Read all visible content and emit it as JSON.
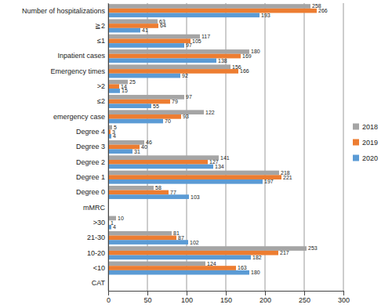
{
  "chart_data": {
    "type": "bar",
    "orientation": "horizontal",
    "categories": [
      "CAT",
      "<10",
      "10-20",
      "21-30",
      ">30",
      "mMRC",
      "Degree 0",
      "Degree 1",
      "Degree 2",
      "Degree 3",
      "Degree 4",
      "emergency case",
      "≤2",
      ">2",
      "Emergency times",
      "Inpatient cases",
      "≤1",
      "≧2",
      "Number of hospitalizations"
    ],
    "series": [
      {
        "name": "2018",
        "color": "#a5a5a5",
        "values": [
          null,
          124,
          253,
          81,
          10,
          null,
          58,
          218,
          141,
          46,
          5,
          122,
          97,
          25,
          156,
          180,
          117,
          63,
          258
        ]
      },
      {
        "name": "2019",
        "color": "#ed7d31",
        "values": [
          null,
          163,
          217,
          87,
          1,
          null,
          77,
          221,
          127,
          40,
          3,
          93,
          79,
          14,
          166,
          169,
          105,
          64,
          266
        ]
      },
      {
        "name": "2020",
        "color": "#5b9bd5",
        "values": [
          null,
          180,
          182,
          102,
          4,
          null,
          103,
          197,
          134,
          31,
          4,
          70,
          55,
          15,
          92,
          138,
          97,
          41,
          193
        ]
      }
    ],
    "xlim": [
      0,
      300
    ],
    "xticks": [
      0,
      50,
      100,
      150,
      200,
      250,
      300
    ],
    "grid": true,
    "legend": "right",
    "data_labels": true
  }
}
